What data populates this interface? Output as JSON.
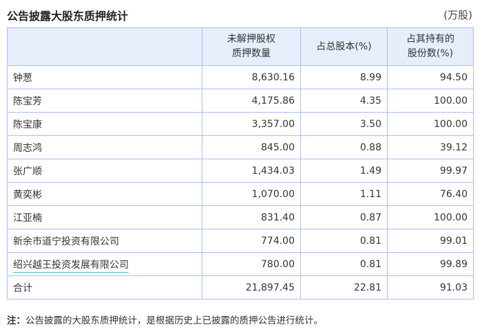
{
  "title": "公告披露大股东质押统计",
  "unit": "(万股)",
  "headers": [
    "",
    "未解押股权\n质押数量",
    "占总股本(%)",
    "占其持有的\n股份数(%)"
  ],
  "header_lines": {
    "h1a": "未解押股权",
    "h1b": "质押数量",
    "h2": "占总股本(%)",
    "h3a": "占其持有的",
    "h3b": "股份数(%)"
  },
  "rows": [
    [
      "钟葱",
      "8,630.16",
      "8.99",
      "94.50"
    ],
    [
      "陈宝芳",
      "4,175.86",
      "4.35",
      "100.00"
    ],
    [
      "陈宝康",
      "3,357.00",
      "3.50",
      "100.00"
    ],
    [
      "周志鸿",
      "845.00",
      "0.88",
      "39.12"
    ],
    [
      "张广顺",
      "1,434.03",
      "1.49",
      "99.97"
    ],
    [
      "黄奕彬",
      "1,070.00",
      "1.11",
      "76.40"
    ],
    [
      "江亚楠",
      "831.40",
      "0.87",
      "100.00"
    ],
    [
      "新余市道宁投资有限公司",
      "774.00",
      "0.81",
      "99.01"
    ],
    [
      "绍兴越王投资发展有限公司",
      "780.00",
      "0.81",
      "99.89"
    ],
    [
      "合计",
      "21,897.45",
      "22.81",
      "91.03"
    ]
  ],
  "note_label": "注：",
  "note": "公告披露的大股东质押统计，是根据历史上已披露的质押公告进行统计。"
}
